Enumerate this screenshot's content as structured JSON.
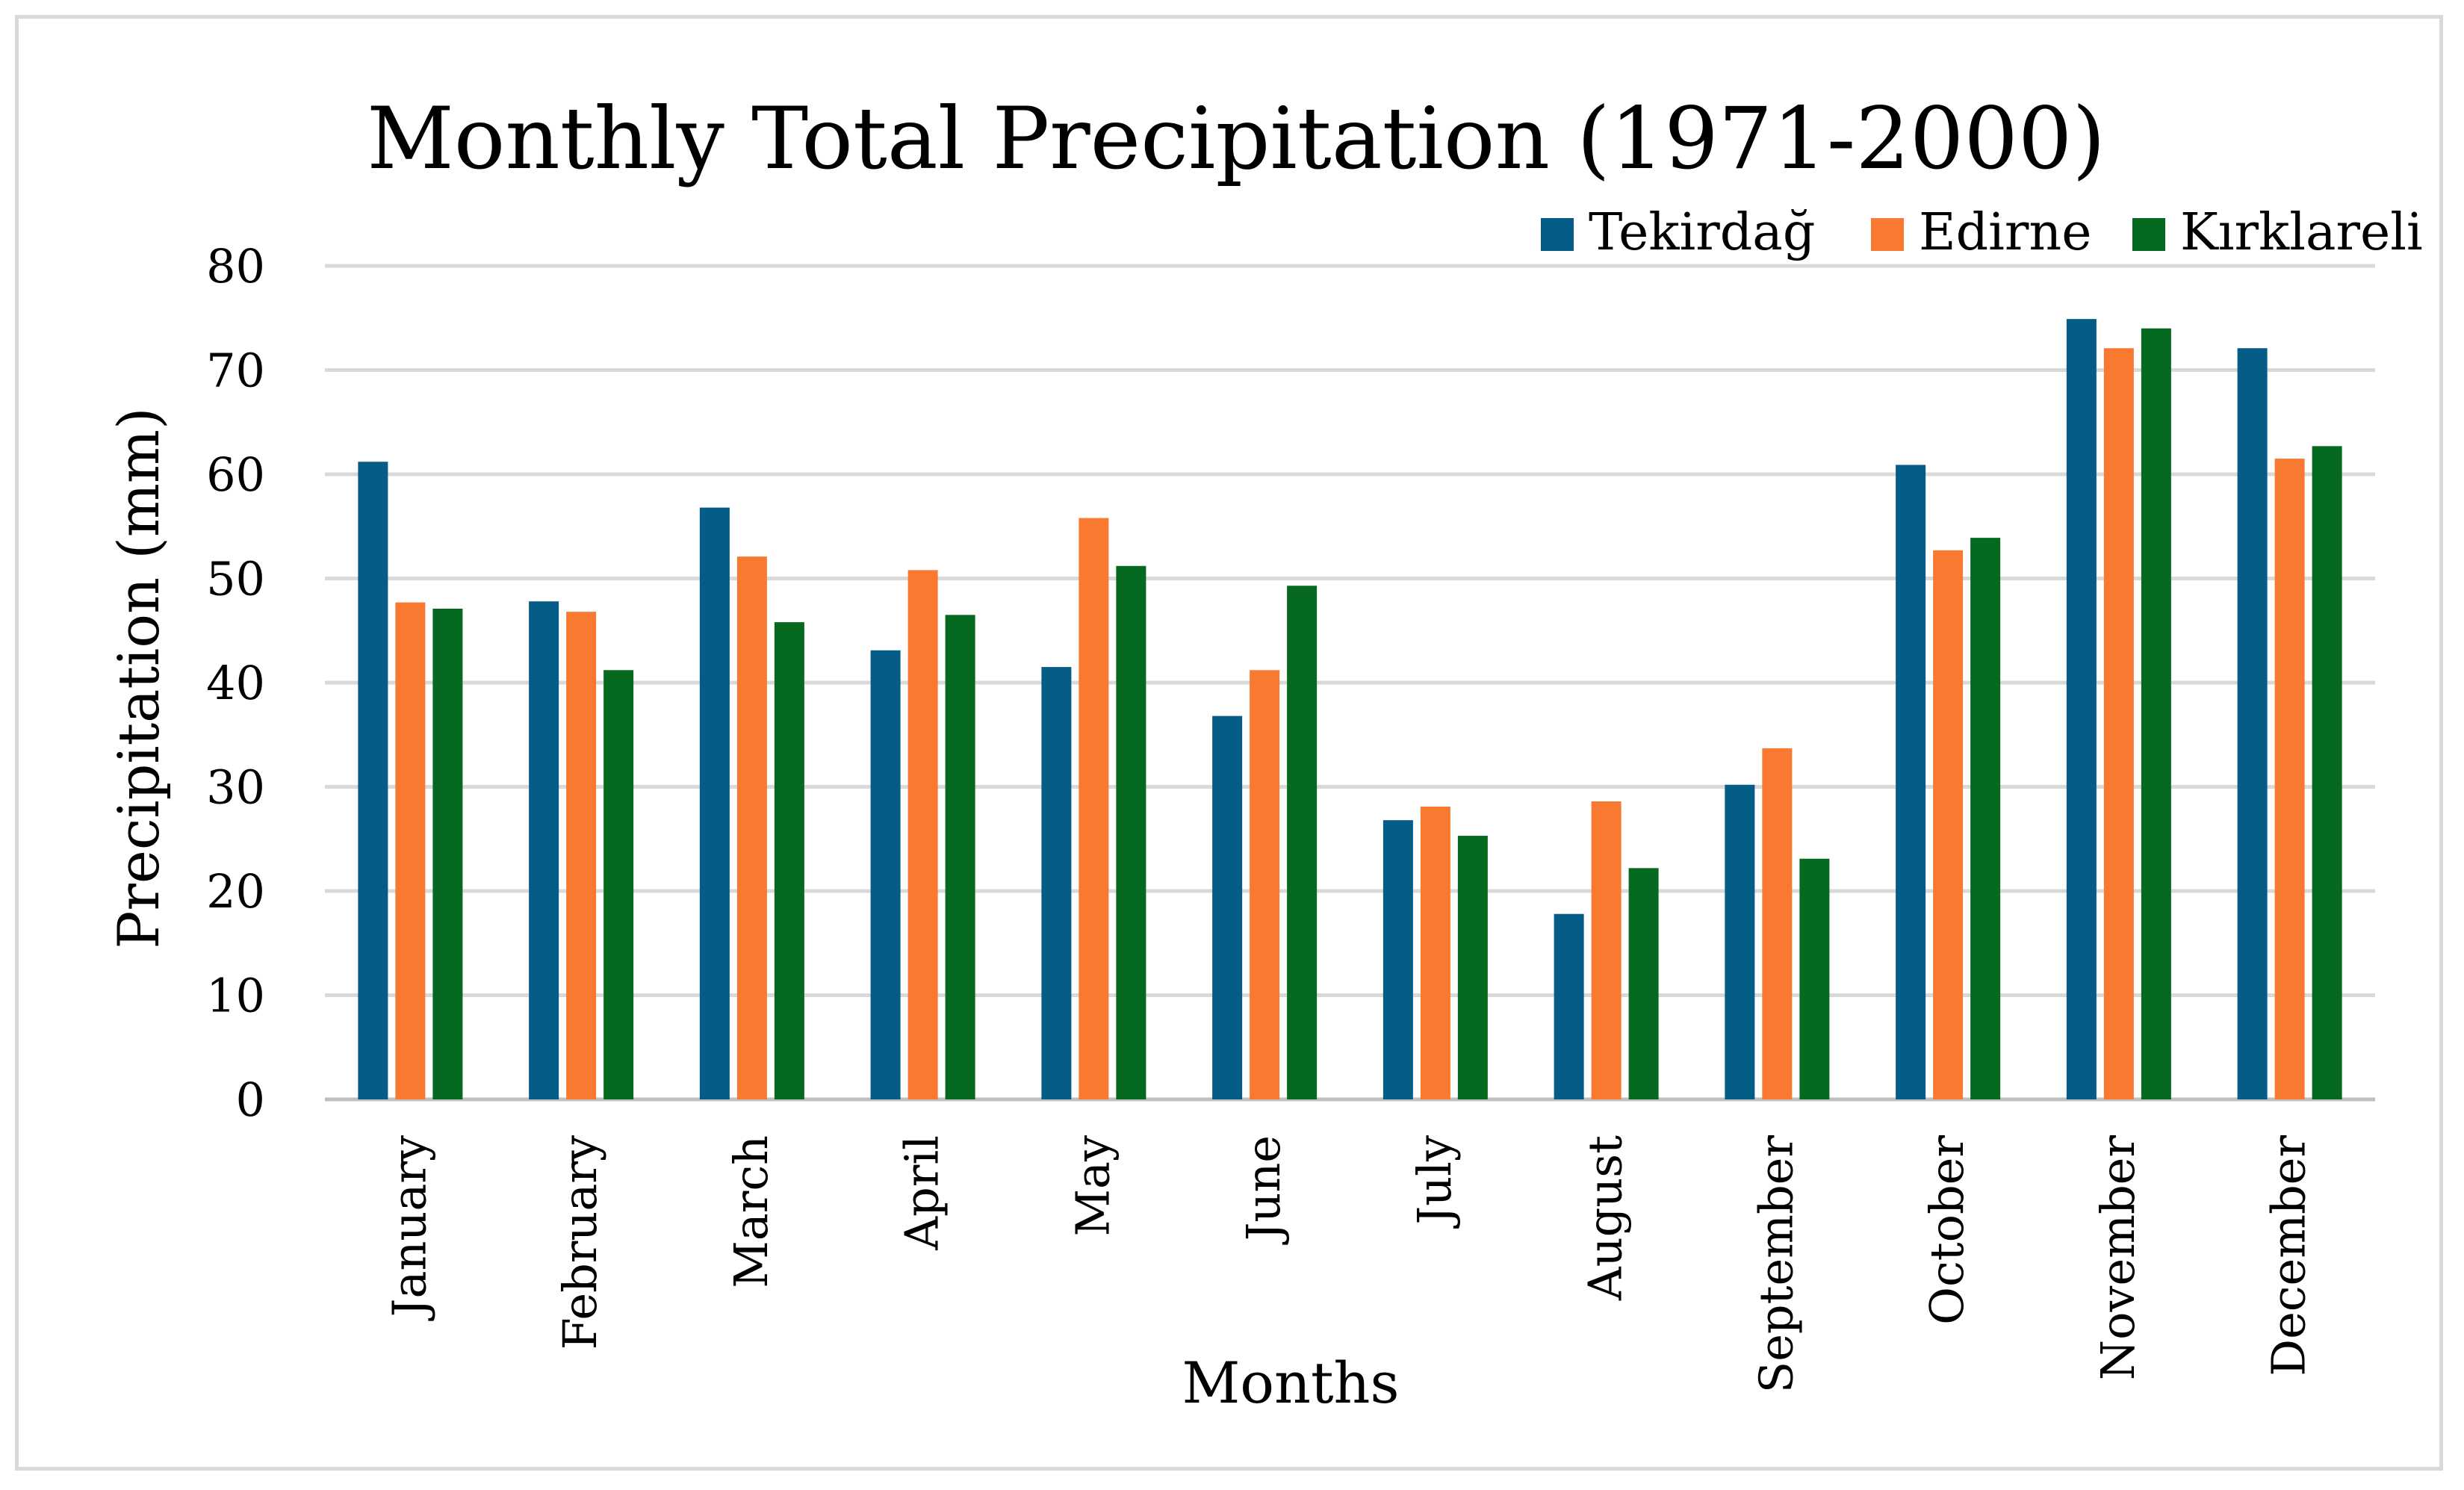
{
  "chart_data": {
    "type": "bar",
    "title": "Monthly Total Precipitation (1971-2000)",
    "xlabel": "Months",
    "ylabel": "Precipitation (mm)",
    "ylim": [
      0,
      80
    ],
    "yticks": [
      "0",
      "10",
      "20",
      "30",
      "40",
      "50",
      "60",
      "70",
      "80"
    ],
    "grid": true,
    "legend_position": "top-right",
    "categories": [
      "January",
      "February",
      "March",
      "April",
      "May",
      "June",
      "July",
      "August",
      "September",
      "October",
      "November",
      "December"
    ],
    "series": [
      {
        "name": "Tekirdağ",
        "color": "#055c86",
        "values": [
          61.2,
          47.8,
          56.8,
          43.1,
          41.5,
          36.8,
          26.8,
          17.8,
          30.2,
          60.9,
          74.9,
          72.1
        ]
      },
      {
        "name": "Edirne",
        "color": "#fa7930",
        "values": [
          47.7,
          46.8,
          52.1,
          50.8,
          55.8,
          41.2,
          28.1,
          28.6,
          33.7,
          52.7,
          72.1,
          61.5
        ]
      },
      {
        "name": "Kırklareli",
        "color": "#056a1f",
        "values": [
          47.1,
          41.2,
          45.8,
          46.5,
          51.2,
          49.3,
          25.3,
          22.2,
          23.1,
          53.9,
          74.0,
          62.7
        ]
      }
    ]
  }
}
